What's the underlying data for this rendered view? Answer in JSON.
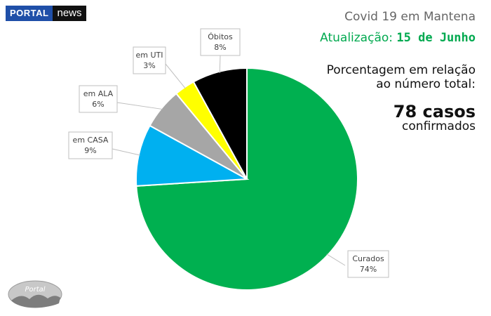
{
  "logo": {
    "portal": "PORTAL",
    "news": "news"
  },
  "header": {
    "title": "Covid 19 em Mantena",
    "update_label": "Atualização:",
    "update_date": "15 de Junho",
    "subtitle_line1": "Porcentagem em relação",
    "subtitle_line2": "ao número total:",
    "cases": "78 casos",
    "confirmed": "confirmados"
  },
  "watermark": {
    "text": "Portal"
  },
  "chart_data": {
    "type": "pie",
    "title": "Covid 19 em Mantena",
    "slices": [
      {
        "label": "Curados",
        "value": 74,
        "display": "74%",
        "color": "#00b050"
      },
      {
        "label": "em CASA",
        "value": 9,
        "display": "9%",
        "color": "#00b0f0"
      },
      {
        "label": "em ALA",
        "value": 6,
        "display": "6%",
        "color": "#a6a6a6"
      },
      {
        "label": "em UTI",
        "value": 3,
        "display": "3%",
        "color": "#ffff00"
      },
      {
        "label": "Óbitos",
        "value": 8,
        "display": "8%",
        "color": "#000000"
      }
    ],
    "start_direction": "12 o'clock, clockwise",
    "legend": "none"
  }
}
